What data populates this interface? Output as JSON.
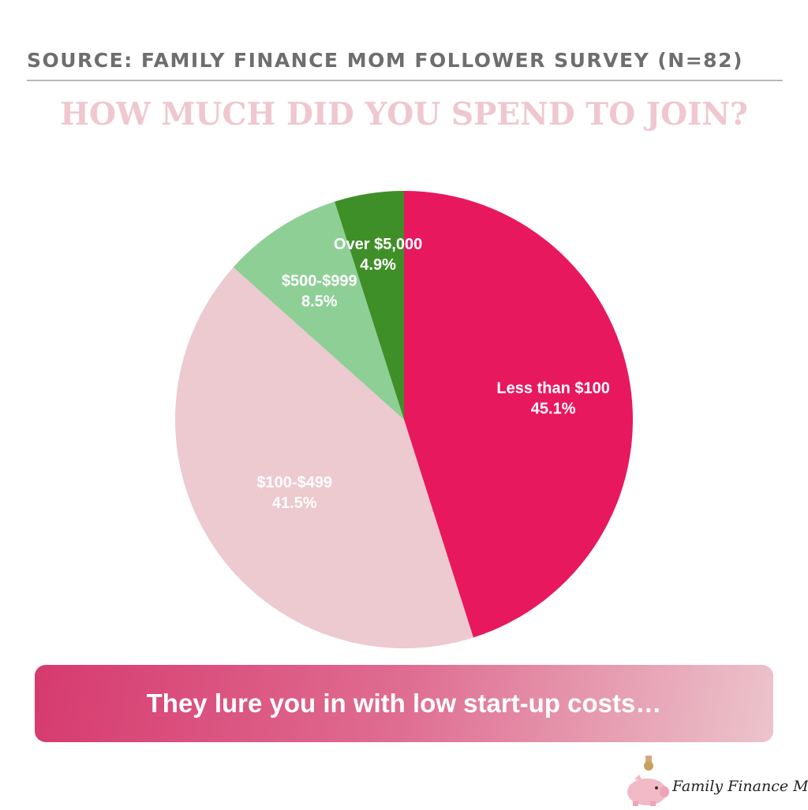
{
  "source": "SOURCE: FAMILY FINANCE MOM FOLLOWER SURVEY (N=82)",
  "banner_text": "They lure you in with low start-up costs…",
  "brand_name": "Family Finance Mom",
  "chart_data": {
    "type": "pie",
    "title": "HOW MUCH DID YOU SPEND TO JOIN?",
    "slices": [
      {
        "label": "Less than $100",
        "pct_label": "45.1%",
        "value": 45.1,
        "color": "#e8185e"
      },
      {
        "label": "$100-$499",
        "pct_label": "41.5%",
        "value": 41.5,
        "color": "#edc9d0"
      },
      {
        "label": "$500-$999",
        "pct_label": "8.5%",
        "value": 8.5,
        "color": "#8ecf96"
      },
      {
        "label": "Over $5,000",
        "pct_label": "4.9%",
        "value": 4.9,
        "color": "#3f8f28"
      }
    ]
  }
}
